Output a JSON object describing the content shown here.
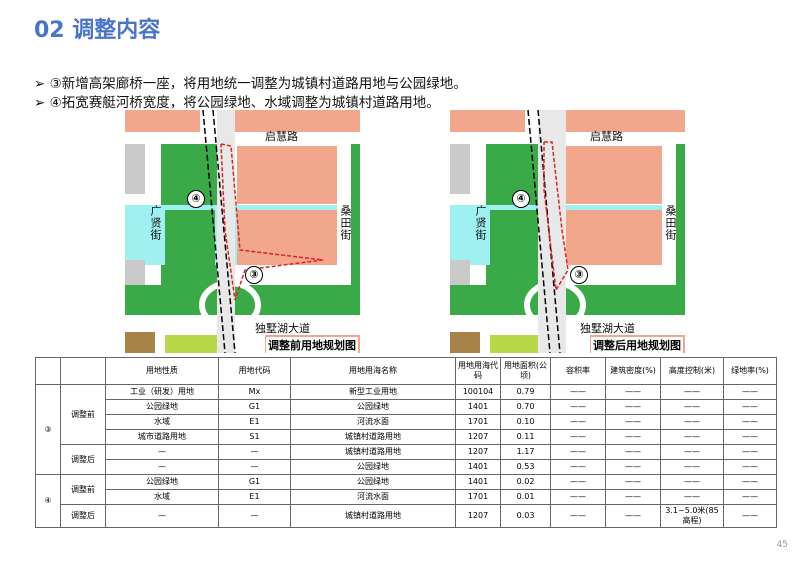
{
  "header": {
    "title": "02 调整内容"
  },
  "bullets": [
    "③新增高架廊桥一座，将用地统一调整为城镇村道路用地与公园绿地。",
    "④拓宽赛艇河桥宽度，将公园绿地、水域调整为城镇村道路用地。"
  ],
  "maps": [
    {
      "caption": "调整前用地规划图",
      "labels": {
        "road_north": "启慧路",
        "street_west": "广贤街",
        "street_east": "桑田街",
        "avenue": "独墅湖大道",
        "marker_4": "④",
        "marker_3": "③"
      }
    },
    {
      "caption": "调整后用地规划图",
      "labels": {
        "road_north": "启慧路",
        "street_west": "广贤街",
        "street_east": "桑田街",
        "avenue": "独墅湖大道",
        "marker_4": "④",
        "marker_3": "③"
      }
    }
  ],
  "table": {
    "header": [
      "用地性质",
      "用地代码",
      "用地用海名称",
      "用地用海代码",
      "用地面积(公顷)",
      "容积率",
      "建筑密度(%)",
      "高度控制(米)",
      "绿地率(%)"
    ],
    "groups": [
      {
        "item": "③",
        "stages": [
          {
            "stage": "调整前",
            "rows": [
              [
                "工业（研发）用地",
                "Mx",
                "新型工业用地",
                "100104",
                "0.79",
                "——",
                "——",
                "——",
                "——"
              ],
              [
                "公园绿地",
                "G1",
                "公园绿地",
                "1401",
                "0.70",
                "——",
                "——",
                "——",
                "——"
              ],
              [
                "水域",
                "E1",
                "河流水面",
                "1701",
                "0.10",
                "——",
                "——",
                "——",
                "——"
              ],
              [
                "城市道路用地",
                "S1",
                "城镇村道路用地",
                "1207",
                "0.11",
                "——",
                "——",
                "——",
                "——"
              ]
            ]
          },
          {
            "stage": "调整后",
            "rows": [
              [
                "—",
                "—",
                "城镇村道路用地",
                "1207",
                "1.17",
                "——",
                "——",
                "——",
                "——"
              ],
              [
                "—",
                "—",
                "公园绿地",
                "1401",
                "0.53",
                "——",
                "——",
                "——",
                "——"
              ]
            ]
          }
        ]
      },
      {
        "item": "④",
        "stages": [
          {
            "stage": "调整前",
            "rows": [
              [
                "公园绿地",
                "G1",
                "公园绿地",
                "1401",
                "0.02",
                "——",
                "——",
                "——",
                "——"
              ],
              [
                "水域",
                "E1",
                "河流水面",
                "1701",
                "0.01",
                "——",
                "——",
                "——",
                "——"
              ]
            ]
          },
          {
            "stage": "调整后",
            "rows": [
              [
                "—",
                "—",
                "城镇村道路用地",
                "1207",
                "0.03",
                "——",
                "——",
                "3.1~5.0米(85高程)",
                "——"
              ]
            ]
          }
        ]
      }
    ]
  },
  "page_number": "45"
}
